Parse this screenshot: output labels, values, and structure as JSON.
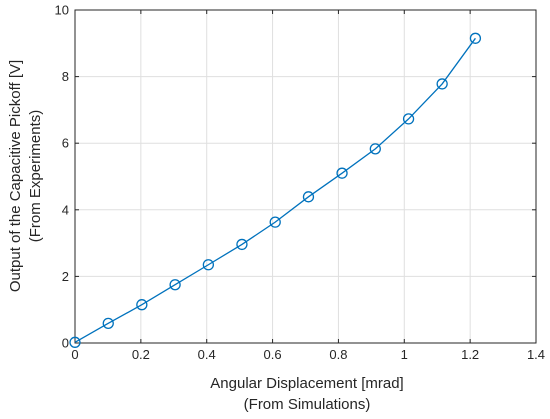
{
  "chart_data": {
    "type": "line",
    "title": "",
    "xlabel": "Angular Displacement [mrad]",
    "xlabel_sub": "(From Simulations)",
    "ylabel": "Output of the Capacitive Pickoff [V]",
    "ylabel_sub": "(From Experiments)",
    "xlim": [
      0,
      1.4
    ],
    "ylim": [
      0,
      10
    ],
    "xticks": [
      0,
      0.2,
      0.4,
      0.6,
      0.8,
      1,
      1.2,
      1.4
    ],
    "xtick_labels": [
      "0",
      "0.2",
      "0.4",
      "0.6",
      "0.8",
      "1",
      "1.2",
      "1.4"
    ],
    "yticks": [
      0,
      2,
      4,
      6,
      8,
      10
    ],
    "ytick_labels": [
      "0",
      "2",
      "4",
      "6",
      "8",
      "10"
    ],
    "grid": true,
    "legend": "none",
    "color": "#0072bd",
    "series": [
      {
        "x": [
          0,
          0.101,
          0.203,
          0.304,
          0.405,
          0.507,
          0.608,
          0.709,
          0.811,
          0.912,
          1.013,
          1.115,
          1.216
        ],
        "y": [
          0.02,
          0.59,
          1.15,
          1.75,
          2.35,
          2.96,
          3.63,
          4.39,
          5.1,
          5.83,
          6.73,
          7.78,
          9.15
        ]
      }
    ]
  }
}
